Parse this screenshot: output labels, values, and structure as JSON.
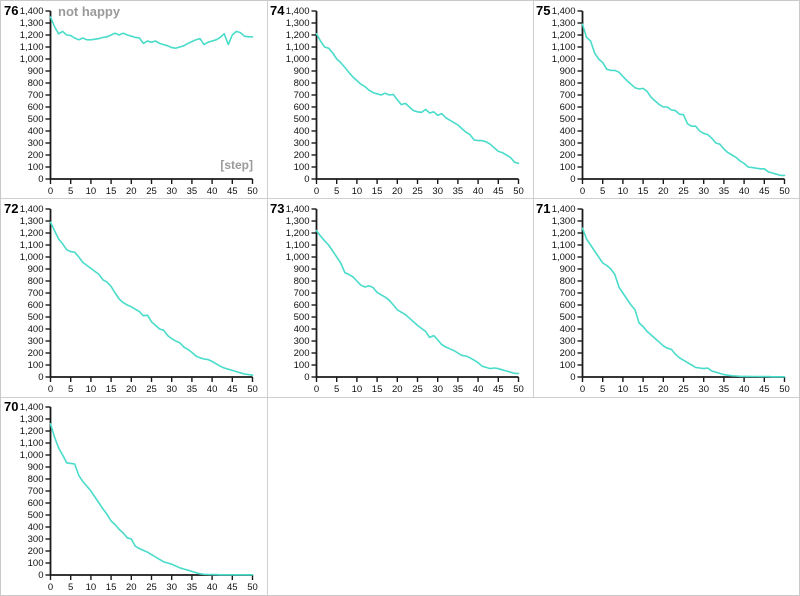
{
  "ui": {
    "annotation_not_happy": "not happy",
    "x_axis_inline_label": "[step]"
  },
  "colors": {
    "line": "#4adcca",
    "axis": "#1a1a1a",
    "tick_label": "#111111",
    "annotation_gray": "#9a9a9a",
    "separator": "#cfcfcf"
  },
  "chart_data": {
    "type": "line",
    "layout": {
      "columns": 3,
      "x_range": [
        0,
        50
      ],
      "y_range": [
        0,
        1400
      ],
      "x_tick_step": 5,
      "y_tick_step": 100,
      "grid": false,
      "legend": "none"
    },
    "charts": [
      {
        "label": "76",
        "annotation": "not happy",
        "x_label": "[step]",
        "values": [
          1350,
          1270,
          1210,
          1230,
          1200,
          1195,
          1175,
          1160,
          1175,
          1160,
          1160,
          1165,
          1170,
          1180,
          1185,
          1200,
          1215,
          1200,
          1215,
          1200,
          1190,
          1180,
          1175,
          1130,
          1150,
          1140,
          1150,
          1130,
          1120,
          1110,
          1095,
          1090,
          1100,
          1110,
          1130,
          1145,
          1160,
          1170,
          1120,
          1140,
          1150,
          1160,
          1180,
          1210,
          1120,
          1200,
          1230,
          1220,
          1190,
          1185,
          1185
        ]
      },
      {
        "label": "74",
        "values": [
          1210,
          1150,
          1100,
          1090,
          1050,
          1000,
          970,
          930,
          890,
          850,
          820,
          790,
          770,
          740,
          720,
          710,
          700,
          715,
          700,
          705,
          660,
          620,
          630,
          600,
          570,
          560,
          555,
          580,
          550,
          560,
          530,
          545,
          510,
          490,
          470,
          450,
          420,
          390,
          370,
          325,
          320,
          320,
          310,
          290,
          260,
          230,
          220,
          200,
          180,
          140,
          130
        ]
      },
      {
        "label": "75",
        "values": [
          1290,
          1180,
          1150,
          1050,
          1000,
          970,
          915,
          905,
          905,
          890,
          855,
          820,
          790,
          760,
          750,
          755,
          730,
          680,
          650,
          620,
          600,
          600,
          575,
          570,
          540,
          535,
          460,
          440,
          440,
          400,
          380,
          370,
          340,
          300,
          290,
          250,
          220,
          200,
          180,
          150,
          130,
          100,
          95,
          90,
          85,
          85,
          60,
          50,
          40,
          30,
          30
        ]
      },
      {
        "label": "72",
        "values": [
          1290,
          1220,
          1150,
          1110,
          1060,
          1045,
          1040,
          1000,
          955,
          930,
          905,
          880,
          855,
          810,
          790,
          755,
          700,
          650,
          620,
          600,
          585,
          565,
          545,
          510,
          515,
          460,
          430,
          400,
          390,
          345,
          320,
          300,
          285,
          250,
          230,
          205,
          175,
          160,
          150,
          145,
          130,
          110,
          90,
          75,
          65,
          55,
          45,
          35,
          25,
          20,
          15
        ]
      },
      {
        "label": "73",
        "values": [
          1220,
          1175,
          1135,
          1100,
          1050,
          1000,
          950,
          870,
          855,
          835,
          800,
          765,
          750,
          760,
          745,
          705,
          685,
          665,
          640,
          600,
          560,
          540,
          520,
          490,
          460,
          430,
          405,
          380,
          330,
          345,
          310,
          270,
          250,
          235,
          220,
          200,
          180,
          175,
          160,
          140,
          120,
          90,
          80,
          70,
          75,
          70,
          60,
          50,
          40,
          30,
          30
        ]
      },
      {
        "label": "71",
        "values": [
          1240,
          1150,
          1100,
          1050,
          1000,
          950,
          930,
          900,
          855,
          750,
          700,
          650,
          600,
          560,
          450,
          420,
          380,
          350,
          320,
          290,
          260,
          240,
          230,
          190,
          160,
          140,
          120,
          100,
          80,
          75,
          70,
          75,
          50,
          40,
          30,
          20,
          15,
          10,
          8,
          6,
          5,
          5,
          4,
          4,
          3,
          3,
          3,
          2,
          2,
          2,
          2
        ]
      },
      {
        "label": "70",
        "values": [
          1260,
          1150,
          1060,
          1000,
          935,
          930,
          925,
          830,
          780,
          740,
          700,
          650,
          600,
          550,
          505,
          450,
          420,
          380,
          350,
          310,
          300,
          240,
          220,
          205,
          190,
          170,
          150,
          130,
          110,
          100,
          90,
          75,
          60,
          50,
          40,
          30,
          20,
          10,
          6,
          4,
          3,
          3,
          2,
          2,
          2,
          2,
          2,
          2,
          2,
          2,
          2
        ]
      }
    ]
  }
}
